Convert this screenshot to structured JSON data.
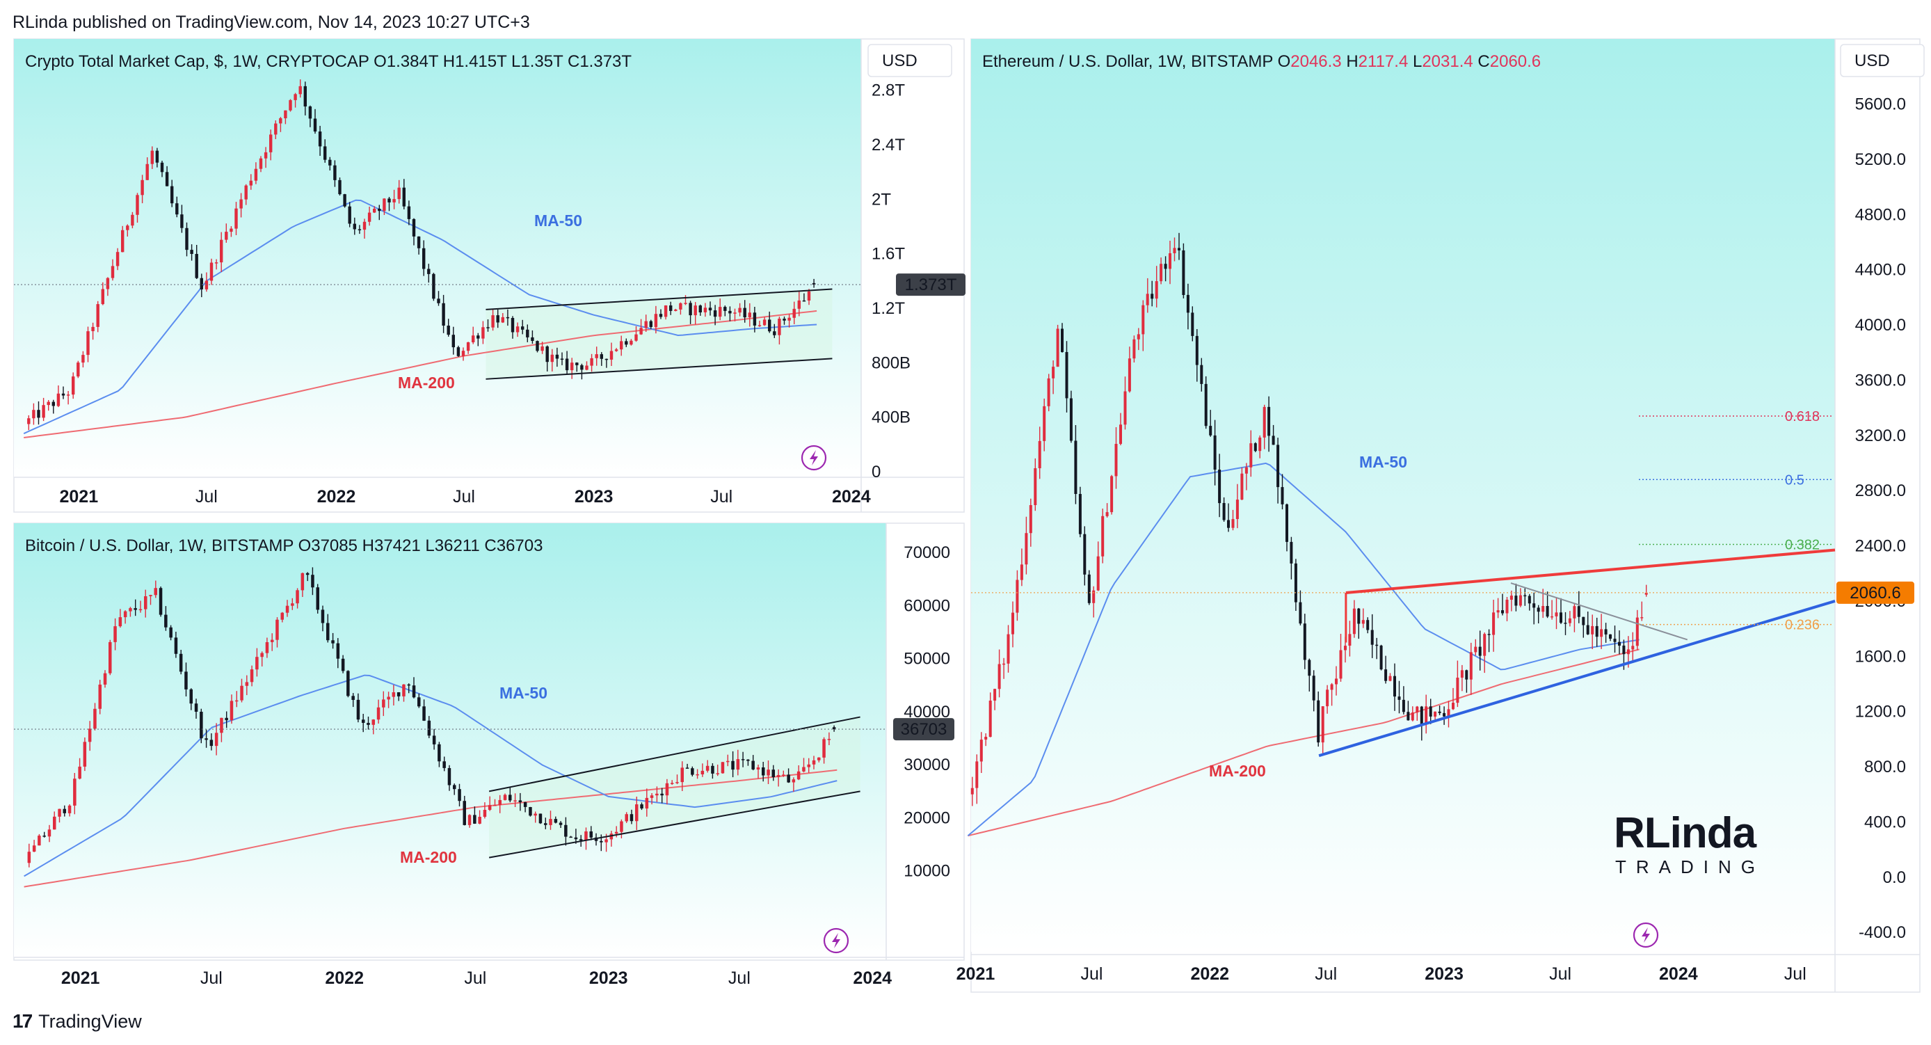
{
  "header": {
    "published_by": "RLinda published on TradingView.com, Nov 14, 2023 10:27 UTC+3"
  },
  "footer": {
    "brand": "TradingView",
    "mark": "17"
  },
  "logo": {
    "line1": "RLinda",
    "line2": "TRADING"
  },
  "colors": {
    "up": "#e02c3e",
    "down": "#131722",
    "ma50": "#5b8def",
    "ma200": "#ef6b72",
    "bg_top": "#aaf0ec",
    "bg_bottom": "#ffffff",
    "trend_red": "#ef3b3b",
    "trend_blue": "#2e62e0",
    "price_tag": "#f57c00"
  },
  "panels": {
    "total": {
      "title_name": "Crypto Total Market Cap, $, 1W, CRYPTOCAP",
      "ohlc": {
        "o_label": "O",
        "o": "1.384T",
        "h_label": "H",
        "h": "1.415T",
        "l_label": "L",
        "l": "1.35T",
        "c_label": "C",
        "c": "1.373T"
      },
      "currency": "USD",
      "last_price_label": "1.373T",
      "ma50_label": "MA-50",
      "ma200_label": "MA-200",
      "y_ticks": [
        "2.8T",
        "2.4T",
        "2T",
        "1.6T",
        "1.2T",
        "800B",
        "400B",
        "0"
      ],
      "x_ticks": [
        "2021",
        "Jul",
        "2022",
        "Jul",
        "2023",
        "Jul",
        "2024"
      ]
    },
    "btc": {
      "title_name": "Bitcoin / U.S. Dollar, 1W, BITSTAMP",
      "ohlc": {
        "o_label": "O",
        "o": "37085",
        "h_label": "H",
        "h": "37421",
        "l_label": "L",
        "l": "36211",
        "c_label": "C",
        "c": "36703"
      },
      "last_price_label": "36703",
      "ma50_label": "MA-50",
      "ma200_label": "MA-200",
      "y_ticks": [
        "70000",
        "60000",
        "50000",
        "40000",
        "30000",
        "20000",
        "10000"
      ],
      "x_ticks": [
        "2021",
        "Jul",
        "2022",
        "Jul",
        "2023",
        "Jul",
        "2024"
      ]
    },
    "eth": {
      "title_name": "Ethereum / U.S. Dollar, 1W, BITSTAMP",
      "ohlc": {
        "o_label": "O",
        "o": "2046.3",
        "h_label": "H",
        "h": "2117.4",
        "l_label": "L",
        "l": "2031.4",
        "c_label": "C",
        "c": "2060.6"
      },
      "currency": "USD",
      "last_price_label": "2060.6",
      "ma50_label": "MA-50",
      "ma200_label": "MA-200",
      "fib_labels": [
        "0.618",
        "0.5",
        "0.382",
        "0.236"
      ],
      "y_ticks": [
        "5600.0",
        "5200.0",
        "4800.0",
        "4400.0",
        "4000.0",
        "3600.0",
        "3200.0",
        "2800.0",
        "2400.0",
        "2000.0",
        "1600.0",
        "1200.0",
        "800.0",
        "400.0",
        "0.0",
        "-400.0"
      ],
      "x_ticks": [
        "2021",
        "Jul",
        "2022",
        "Jul",
        "2023",
        "Jul",
        "2024",
        "Jul"
      ]
    }
  },
  "chart_data": [
    {
      "type": "candlestick",
      "title": "Crypto Total Market Cap, $, 1W, CRYPTOCAP",
      "unit": "USD",
      "ylim": [
        0,
        2900000000000
      ],
      "x_range": [
        "2020-10",
        "2024-01"
      ],
      "last": {
        "open": 1384000000000,
        "high": 1415000000000,
        "low": 1350000000000,
        "close": 1373000000000
      },
      "close_path": [
        {
          "date": "2020-10-15",
          "value": 350000000000
        },
        {
          "date": "2020-12-20",
          "value": 600000000000
        },
        {
          "date": "2021-02-20",
          "value": 1550000000000
        },
        {
          "date": "2021-04-15",
          "value": 2350000000000
        },
        {
          "date": "2021-06-25",
          "value": 1350000000000
        },
        {
          "date": "2021-09-05",
          "value": 2200000000000
        },
        {
          "date": "2021-11-08",
          "value": 2850000000000
        },
        {
          "date": "2022-01-25",
          "value": 1750000000000
        },
        {
          "date": "2022-03-30",
          "value": 2050000000000
        },
        {
          "date": "2022-06-18",
          "value": 850000000000
        },
        {
          "date": "2022-08-14",
          "value": 1150000000000
        },
        {
          "date": "2022-11-15",
          "value": 780000000000
        },
        {
          "date": "2022-12-30",
          "value": 790000000000
        },
        {
          "date": "2023-04-15",
          "value": 1200000000000
        },
        {
          "date": "2023-07-15",
          "value": 1180000000000
        },
        {
          "date": "2023-09-15",
          "value": 1050000000000
        },
        {
          "date": "2023-11-13",
          "value": 1373000000000
        }
      ],
      "ma50": [
        {
          "date": "2020-10-15",
          "value": 280000000000
        },
        {
          "date": "2021-03-01",
          "value": 600000000000
        },
        {
          "date": "2021-07-01",
          "value": 1400000000000
        },
        {
          "date": "2021-11-01",
          "value": 1800000000000
        },
        {
          "date": "2022-02-01",
          "value": 2000000000000
        },
        {
          "date": "2022-06-01",
          "value": 1700000000000
        },
        {
          "date": "2022-10-01",
          "value": 1300000000000
        },
        {
          "date": "2023-01-01",
          "value": 1150000000000
        },
        {
          "date": "2023-05-01",
          "value": 1000000000000
        },
        {
          "date": "2023-08-15",
          "value": 1050000000000
        },
        {
          "date": "2023-11-13",
          "value": 1080000000000
        }
      ],
      "ma200": [
        {
          "date": "2020-10-15",
          "value": 250000000000
        },
        {
          "date": "2021-06-01",
          "value": 400000000000
        },
        {
          "date": "2022-01-01",
          "value": 650000000000
        },
        {
          "date": "2022-07-01",
          "value": 850000000000
        },
        {
          "date": "2023-01-01",
          "value": 1000000000000
        },
        {
          "date": "2023-07-01",
          "value": 1100000000000
        },
        {
          "date": "2023-11-13",
          "value": 1180000000000
        }
      ],
      "channel": {
        "upper": [
          {
            "date": "2022-08-01",
            "value": 1190000000000
          },
          {
            "date": "2023-12-05",
            "value": 1340000000000
          }
        ],
        "lower": [
          {
            "date": "2022-08-01",
            "value": 680000000000
          },
          {
            "date": "2023-12-05",
            "value": 830000000000
          }
        ]
      },
      "series_labels": [
        "MA-50",
        "MA-200"
      ]
    },
    {
      "type": "candlestick",
      "title": "Bitcoin / U.S. Dollar, 1W, BITSTAMP",
      "unit": "USD",
      "ylim": [
        0,
        75000
      ],
      "x_range": [
        "2020-10",
        "2024-01"
      ],
      "last": {
        "open": 37085,
        "high": 37421,
        "low": 36211,
        "close": 36703
      },
      "close_path": [
        {
          "date": "2020-10-15",
          "value": 11500
        },
        {
          "date": "2020-12-20",
          "value": 24000
        },
        {
          "date": "2021-02-20",
          "value": 57000
        },
        {
          "date": "2021-04-15",
          "value": 62000
        },
        {
          "date": "2021-06-25",
          "value": 33000
        },
        {
          "date": "2021-09-05",
          "value": 50000
        },
        {
          "date": "2021-11-08",
          "value": 66000
        },
        {
          "date": "2022-01-25",
          "value": 37000
        },
        {
          "date": "2022-03-30",
          "value": 46000
        },
        {
          "date": "2022-06-18",
          "value": 19000
        },
        {
          "date": "2022-08-14",
          "value": 24000
        },
        {
          "date": "2022-11-15",
          "value": 16500
        },
        {
          "date": "2022-12-30",
          "value": 16600
        },
        {
          "date": "2023-04-15",
          "value": 29000
        },
        {
          "date": "2023-07-15",
          "value": 30000
        },
        {
          "date": "2023-09-15",
          "value": 26500
        },
        {
          "date": "2023-11-13",
          "value": 36703
        }
      ],
      "ma50": [
        {
          "date": "2020-10-15",
          "value": 9000
        },
        {
          "date": "2021-03-01",
          "value": 20000
        },
        {
          "date": "2021-07-01",
          "value": 37000
        },
        {
          "date": "2021-11-01",
          "value": 43000
        },
        {
          "date": "2022-02-01",
          "value": 47000
        },
        {
          "date": "2022-06-01",
          "value": 41000
        },
        {
          "date": "2022-10-01",
          "value": 30000
        },
        {
          "date": "2023-01-01",
          "value": 24000
        },
        {
          "date": "2023-05-01",
          "value": 22000
        },
        {
          "date": "2023-08-15",
          "value": 24000
        },
        {
          "date": "2023-11-13",
          "value": 27000
        }
      ],
      "ma200": [
        {
          "date": "2020-10-15",
          "value": 7000
        },
        {
          "date": "2021-06-01",
          "value": 12000
        },
        {
          "date": "2022-01-01",
          "value": 18000
        },
        {
          "date": "2022-07-01",
          "value": 22000
        },
        {
          "date": "2023-01-01",
          "value": 24500
        },
        {
          "date": "2023-07-01",
          "value": 27000
        },
        {
          "date": "2023-11-13",
          "value": 29000
        }
      ],
      "channel": {
        "upper": [
          {
            "date": "2022-07-20",
            "value": 25000
          },
          {
            "date": "2023-12-15",
            "value": 39000
          }
        ],
        "lower": [
          {
            "date": "2022-07-20",
            "value": 12500
          },
          {
            "date": "2023-12-15",
            "value": 25000
          }
        ]
      },
      "series_labels": [
        "MA-50",
        "MA-200"
      ]
    },
    {
      "type": "candlestick",
      "title": "Ethereum / U.S. Dollar, 1W, BITSTAMP",
      "unit": "USD",
      "ylim": [
        -500,
        5900
      ],
      "x_range": [
        "2020-12",
        "2024-09"
      ],
      "last": {
        "open": 2046.3,
        "high": 2117.4,
        "low": 2031.4,
        "close": 2060.6
      },
      "close_path": [
        {
          "date": "2020-12-20",
          "value": 600
        },
        {
          "date": "2021-02-20",
          "value": 1700
        },
        {
          "date": "2021-05-10",
          "value": 4000
        },
        {
          "date": "2021-06-25",
          "value": 1900
        },
        {
          "date": "2021-09-05",
          "value": 3900
        },
        {
          "date": "2021-11-08",
          "value": 4650
        },
        {
          "date": "2022-01-25",
          "value": 2500
        },
        {
          "date": "2022-03-30",
          "value": 3400
        },
        {
          "date": "2022-06-18",
          "value": 1050
        },
        {
          "date": "2022-08-14",
          "value": 1900
        },
        {
          "date": "2022-11-15",
          "value": 1150
        },
        {
          "date": "2022-12-30",
          "value": 1200
        },
        {
          "date": "2023-04-15",
          "value": 2050
        },
        {
          "date": "2023-07-15",
          "value": 1900
        },
        {
          "date": "2023-10-15",
          "value": 1600
        },
        {
          "date": "2023-11-13",
          "value": 2060.6
        }
      ],
      "ma50": [
        {
          "date": "2020-12-20",
          "value": 300
        },
        {
          "date": "2021-04-01",
          "value": 700
        },
        {
          "date": "2021-08-01",
          "value": 2100
        },
        {
          "date": "2021-12-01",
          "value": 2900
        },
        {
          "date": "2022-04-01",
          "value": 3000
        },
        {
          "date": "2022-08-01",
          "value": 2500
        },
        {
          "date": "2022-12-01",
          "value": 1800
        },
        {
          "date": "2023-04-01",
          "value": 1500
        },
        {
          "date": "2023-08-01",
          "value": 1650
        },
        {
          "date": "2023-11-01",
          "value": 1720
        }
      ],
      "ma200": [
        {
          "date": "2020-12-20",
          "value": 300
        },
        {
          "date": "2021-08-01",
          "value": 550
        },
        {
          "date": "2022-04-01",
          "value": 950
        },
        {
          "date": "2022-10-01",
          "value": 1120
        },
        {
          "date": "2023-04-01",
          "value": 1400
        },
        {
          "date": "2023-11-01",
          "value": 1650
        }
      ],
      "trendlines": {
        "resistance": [
          {
            "date": "2022-08-01",
            "value": 2060
          },
          {
            "date": "2024-09-01",
            "value": 2370
          }
        ],
        "support": [
          {
            "date": "2022-06-20",
            "value": 880
          },
          {
            "date": "2024-09-01",
            "value": 2000
          }
        ],
        "descending": [
          {
            "date": "2023-04-15",
            "value": 2130
          },
          {
            "date": "2024-01-15",
            "value": 1720
          }
        ]
      },
      "fib_levels": [
        {
          "label": "0.618",
          "value": 3340
        },
        {
          "label": "0.5",
          "value": 2880
        },
        {
          "label": "0.382",
          "value": 2410
        },
        {
          "label": "0.236",
          "value": 1830
        }
      ],
      "series_labels": [
        "MA-50",
        "MA-200"
      ]
    }
  ]
}
